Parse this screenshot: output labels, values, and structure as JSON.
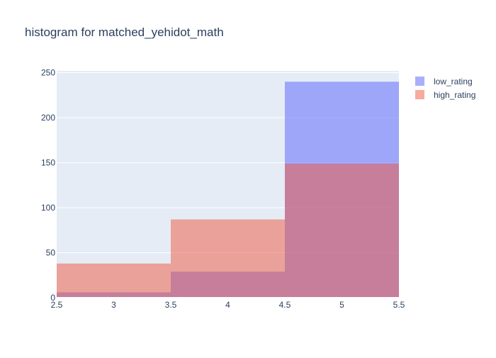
{
  "chart_data": {
    "type": "bar",
    "title": "histogram for matched_yehidot_math",
    "xlabel": "",
    "ylabel": "",
    "bins": [
      [
        2.5,
        3.5
      ],
      [
        3.5,
        4.5
      ],
      [
        4.5,
        5.5
      ]
    ],
    "xlim": [
      2.5,
      5.5
    ],
    "ylim": [
      0,
      252
    ],
    "x_ticks": [
      2.5,
      3,
      3.5,
      4,
      4.5,
      5,
      5.5
    ],
    "x_tick_labels": [
      "2.5",
      "3",
      "3.5",
      "4",
      "4.5",
      "5",
      "5.5"
    ],
    "y_ticks": [
      0,
      50,
      100,
      150,
      200,
      250
    ],
    "y_tick_labels": [
      "0",
      "50",
      "100",
      "150",
      "200",
      "250"
    ],
    "grid": true,
    "legend_position": "top-right",
    "series": [
      {
        "name": "low_rating",
        "values": [
          6,
          29,
          240
        ],
        "color": "#636efa",
        "opacity": 0.55
      },
      {
        "name": "high_rating",
        "values": [
          38,
          87,
          149
        ],
        "color": "#ef553b",
        "opacity": 0.5
      }
    ],
    "plot_background": "#e5ecf6",
    "text_color": "#2a3f5f"
  }
}
